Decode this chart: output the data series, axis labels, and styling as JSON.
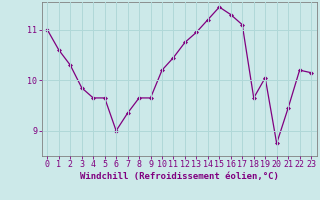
{
  "x": [
    0,
    1,
    2,
    3,
    4,
    5,
    6,
    7,
    8,
    9,
    10,
    11,
    12,
    13,
    14,
    15,
    16,
    17,
    18,
    19,
    20,
    21,
    22,
    23
  ],
  "y": [
    11.0,
    10.6,
    10.3,
    9.85,
    9.65,
    9.65,
    9.0,
    9.35,
    9.65,
    9.65,
    10.2,
    10.45,
    10.75,
    10.95,
    11.2,
    11.45,
    11.3,
    11.1,
    9.65,
    10.05,
    8.75,
    9.45,
    10.2,
    10.15
  ],
  "line_color": "#800080",
  "marker": "D",
  "marker_size": 2.0,
  "bg_color": "#cce9e9",
  "grid_color": "#b0d8d8",
  "xlabel": "Windchill (Refroidissement éolien,°C)",
  "ylim": [
    8.5,
    11.55
  ],
  "yticks": [
    9,
    10,
    11
  ],
  "xticks": [
    0,
    1,
    2,
    3,
    4,
    5,
    6,
    7,
    8,
    9,
    10,
    11,
    12,
    13,
    14,
    15,
    16,
    17,
    18,
    19,
    20,
    21,
    22,
    23
  ],
  "xlabel_fontsize": 6.5,
  "tick_fontsize": 6.0,
  "tick_color": "#800080",
  "spine_color": "#808080"
}
